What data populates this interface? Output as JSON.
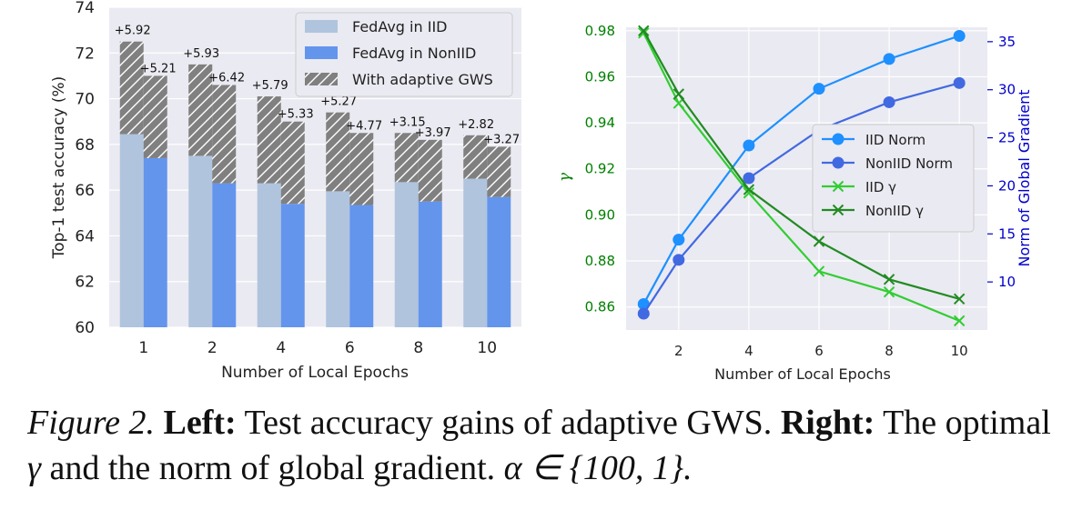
{
  "chart_data": [
    {
      "type": "bar",
      "xlabel": "Number of Local Epochs",
      "ylabel": "Top-1 test accuracy (%)",
      "categories": [
        "1",
        "2",
        "4",
        "6",
        "8",
        "10"
      ],
      "ylim": [
        60,
        74
      ],
      "yticks": [
        "60",
        "62",
        "64",
        "66",
        "68",
        "70",
        "72",
        "74"
      ],
      "legend_position": "top-right",
      "grid": true,
      "series": [
        {
          "name": "FedAvg in IID",
          "values": [
            68.45,
            67.5,
            66.3,
            65.95,
            66.35,
            66.5
          ],
          "color": "#b0c4de"
        },
        {
          "name": "FedAvg in NonIID",
          "values": [
            67.4,
            66.3,
            65.4,
            65.35,
            65.5,
            65.7
          ],
          "color": "#6495ed"
        },
        {
          "name": "With adaptive GWS",
          "iid_totals": [
            72.5,
            71.5,
            70.1,
            69.4,
            68.5,
            68.4
          ],
          "noniid_totals": [
            71.0,
            70.6,
            69.0,
            68.5,
            68.2,
            67.9
          ],
          "color": "#808080"
        }
      ],
      "gain_labels_iid": [
        "+5.92",
        "+5.93",
        "+5.79",
        "+5.27",
        "+3.15",
        "+2.82"
      ],
      "gain_labels_noniid": [
        "+5.21",
        "+6.42",
        "+5.33",
        "+4.77",
        "+3.97",
        "+3.27"
      ]
    },
    {
      "type": "line",
      "xlabel": "Number of Local Epochs",
      "ylabel_left": "γ",
      "ylabel_right": "Norm of Global Gradient",
      "x": [
        1,
        2,
        4,
        6,
        8,
        10
      ],
      "xticks": [
        "2",
        "4",
        "6",
        "8",
        "10"
      ],
      "xlim": [
        0.5,
        10.8
      ],
      "ylim_left": [
        0.85,
        0.9815
      ],
      "yticks_left": [
        "0.86",
        "0.88",
        "0.90",
        "0.92",
        "0.94",
        "0.96",
        "0.98"
      ],
      "ylim_right": [
        5,
        36.5
      ],
      "yticks_right": [
        "10",
        "15",
        "20",
        "25",
        "30",
        "35"
      ],
      "legend_position": "center-right",
      "grid": true,
      "series": [
        {
          "name": "IID Norm",
          "axis": "right",
          "marker": "circle",
          "color": "#1e90ff",
          "values": [
            7.7,
            14.4,
            24.2,
            30.1,
            33.2,
            35.6
          ]
        },
        {
          "name": "NonIID Norm",
          "axis": "right",
          "marker": "circle",
          "color": "#4169e1",
          "values": [
            6.7,
            12.3,
            20.8,
            25.8,
            28.7,
            30.7
          ]
        },
        {
          "name": "IID γ",
          "axis": "left",
          "marker": "x",
          "color": "#32cd32",
          "values": [
            0.979,
            0.9485,
            0.9095,
            0.8755,
            0.8665,
            0.854
          ]
        },
        {
          "name": "NonIID γ",
          "axis": "left",
          "marker": "x",
          "color": "#228b22",
          "values": [
            0.98,
            0.9525,
            0.911,
            0.8885,
            0.872,
            0.8635
          ]
        }
      ]
    }
  ],
  "caption": {
    "label": "Figure 2.",
    "left_bold": "Left:",
    "left_text": "Test accuracy gains of adaptive GWS.",
    "right_bold": "Right:",
    "right_text": "The optimal",
    "gamma": "γ",
    "mid_text": "and the norm of global gradient.",
    "alpha_expr": "α ∈ {100, 1}."
  }
}
